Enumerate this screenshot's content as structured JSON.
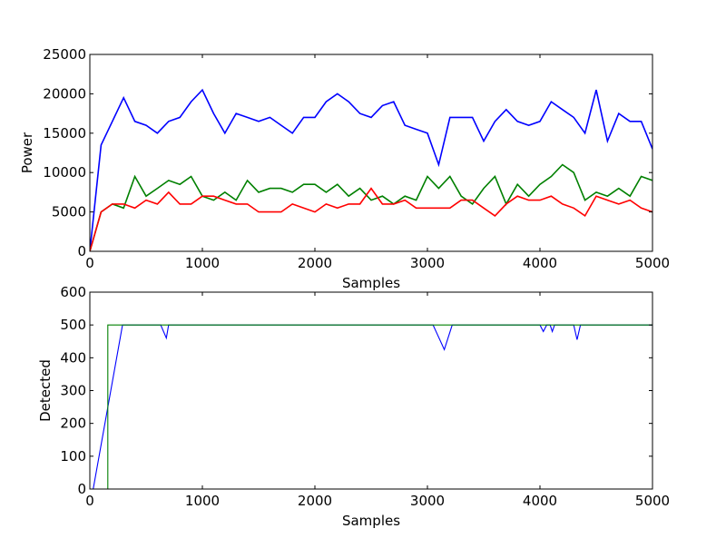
{
  "chart_data": [
    {
      "type": "line",
      "title": "",
      "xlabel": "Samples",
      "ylabel": "Power",
      "xlim": [
        0,
        5000
      ],
      "ylim": [
        0,
        25000
      ],
      "xticks": [
        0,
        1000,
        2000,
        3000,
        4000,
        5000
      ],
      "yticks": [
        0,
        5000,
        10000,
        15000,
        20000,
        25000
      ],
      "grid": false,
      "x": [
        0,
        100,
        200,
        300,
        400,
        500,
        600,
        700,
        800,
        900,
        1000,
        1100,
        1200,
        1300,
        1400,
        1500,
        1600,
        1700,
        1800,
        1900,
        2000,
        2100,
        2200,
        2300,
        2400,
        2500,
        2600,
        2700,
        2800,
        2900,
        3000,
        3100,
        3200,
        3300,
        3400,
        3500,
        3600,
        3700,
        3800,
        3900,
        4000,
        4100,
        4200,
        4300,
        4400,
        4500,
        4600,
        4700,
        4800,
        4900,
        5000
      ],
      "series": [
        {
          "color": "#0000ff",
          "values": [
            0,
            13500,
            16500,
            19500,
            16500,
            16000,
            15000,
            16500,
            17000,
            19000,
            20500,
            17500,
            15000,
            17500,
            17000,
            16500,
            17000,
            16000,
            15000,
            17000,
            17000,
            19000,
            20000,
            19000,
            17500,
            17000,
            18500,
            19000,
            16000,
            15500,
            15000,
            11000,
            17000,
            17000,
            17000,
            14000,
            16500,
            18000,
            16500,
            16000,
            16500,
            19000,
            18000,
            17000,
            15000,
            20500,
            14000,
            17500,
            16500,
            16500,
            13000
          ]
        },
        {
          "color": "#008000",
          "values": [
            0,
            5000,
            6000,
            5500,
            9500,
            7000,
            8000,
            9000,
            8500,
            9500,
            7000,
            6500,
            7500,
            6500,
            9000,
            7500,
            8000,
            8000,
            7500,
            8500,
            8500,
            7500,
            8500,
            7000,
            8000,
            6500,
            7000,
            6000,
            7000,
            6500,
            9500,
            8000,
            9500,
            7000,
            6000,
            8000,
            9500,
            6000,
            8500,
            7000,
            8500,
            9500,
            11000,
            10000,
            6500,
            7500,
            7000,
            8000,
            7000,
            9500,
            9000
          ]
        },
        {
          "color": "#ff0000",
          "values": [
            0,
            5000,
            6000,
            6000,
            5500,
            6500,
            6000,
            7500,
            6000,
            6000,
            7000,
            7000,
            6500,
            6000,
            6000,
            5000,
            5000,
            5000,
            6000,
            5500,
            5000,
            6000,
            5500,
            6000,
            6000,
            8000,
            6000,
            6000,
            6500,
            5500,
            5500,
            5500,
            5500,
            6500,
            6500,
            5500,
            4500,
            6000,
            7000,
            6500,
            6500,
            7000,
            6000,
            5500,
            4500,
            7000,
            6500,
            6000,
            6500,
            5500,
            5000
          ]
        }
      ]
    },
    {
      "type": "line",
      "title": "",
      "xlabel": "Samples",
      "ylabel": "Detected",
      "xlim": [
        0,
        5000
      ],
      "ylim": [
        0,
        600
      ],
      "xticks": [
        0,
        1000,
        2000,
        3000,
        4000,
        5000
      ],
      "yticks": [
        0,
        100,
        200,
        300,
        400,
        500,
        600
      ],
      "grid": false,
      "series": [
        {
          "color": "#0000ff",
          "points": [
            [
              0,
              0
            ],
            [
              30,
              0
            ],
            [
              290,
              500
            ],
            [
              630,
              500
            ],
            [
              680,
              460
            ],
            [
              700,
              500
            ],
            [
              3050,
              500
            ],
            [
              3150,
              425
            ],
            [
              3220,
              500
            ],
            [
              4000,
              500
            ],
            [
              4030,
              480
            ],
            [
              4060,
              500
            ],
            [
              4090,
              500
            ],
            [
              4110,
              480
            ],
            [
              4130,
              500
            ],
            [
              4300,
              500
            ],
            [
              4330,
              455
            ],
            [
              4360,
              500
            ],
            [
              5000,
              500
            ]
          ]
        },
        {
          "color": "#008000",
          "points": [
            [
              0,
              0
            ],
            [
              160,
              0
            ],
            [
              160,
              500
            ],
            [
              5000,
              500
            ]
          ]
        }
      ]
    }
  ]
}
